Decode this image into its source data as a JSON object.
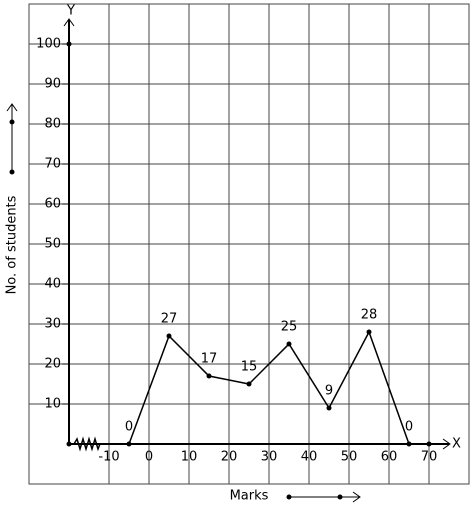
{
  "chart_data": {
    "type": "line",
    "x_label": "Marks",
    "y_label": "No. of students",
    "x_axis_name": "X",
    "y_axis_name": "Y",
    "x": [
      -5,
      5,
      15,
      25,
      35,
      45,
      55,
      65
    ],
    "values": [
      0,
      27,
      17,
      15,
      25,
      9,
      28,
      0
    ],
    "color": "#000000",
    "xlim": [
      -30,
      80
    ],
    "ylim": [
      -10,
      110
    ],
    "xticks": [
      -10,
      0,
      10,
      20,
      30,
      40,
      50,
      60,
      70
    ],
    "yticks": [
      10,
      20,
      30,
      40,
      50,
      60,
      70,
      80,
      90,
      100
    ],
    "grid": true
  }
}
